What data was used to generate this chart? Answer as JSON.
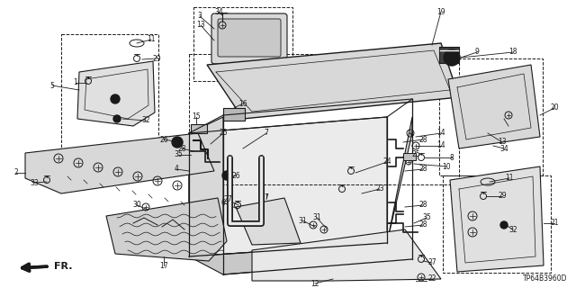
{
  "diagram_code": "TP64B3960D",
  "bg_color": "#ffffff",
  "lc": "#1a1a1a",
  "fig_width": 6.4,
  "fig_height": 3.2,
  "dpi": 100
}
